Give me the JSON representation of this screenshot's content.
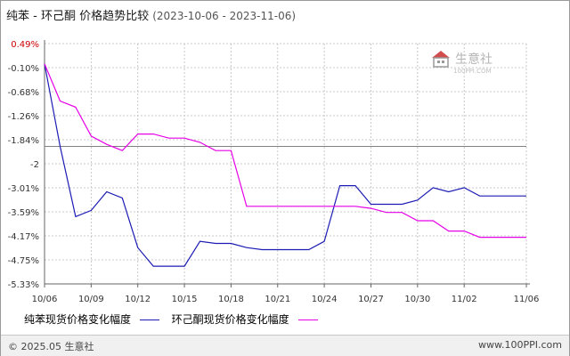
{
  "title": {
    "main": "纯苯 - 环己酮 价格趋势比较",
    "range": "(2023-10-06 - 2023-11-06)"
  },
  "watermark": {
    "brand": "生意社",
    "url": "100PPI.COM"
  },
  "footer": {
    "copyright": "© 2025.05 生意社",
    "site": "www.100PPI.com"
  },
  "colors": {
    "series1": "#1c1cb4",
    "series2": "#e600e6",
    "grid": "#c8c8c8",
    "axis": "#666666",
    "positive_tick": "#cc0000",
    "baseline": "#808080",
    "watermark_red": "#d24d4d",
    "watermark_gray": "#9a9a9a"
  },
  "chart_data": {
    "type": "line",
    "title": "纯苯 - 环己酮 价格趋势比较",
    "x_ticks": [
      "10/06",
      "10/09",
      "10/12",
      "10/15",
      "10/18",
      "10/21",
      "10/24",
      "10/27",
      "10/30",
      "11/02",
      "11/06"
    ],
    "y_ticks": [
      "0.49%",
      "-0.10%",
      "-0.68%",
      "-1.26%",
      "-1.84%",
      "-2",
      "-3.01%",
      "-3.59%",
      "-4.17%",
      "-4.75%",
      "-5.33%"
    ],
    "ylim": [
      -5.33,
      0.49
    ],
    "baseline_y": -2.0,
    "grid": true,
    "legend_position": "bottom-left",
    "x": [
      "10/06",
      "10/07",
      "10/08",
      "10/09",
      "10/10",
      "10/11",
      "10/12",
      "10/13",
      "10/14",
      "10/15",
      "10/16",
      "10/17",
      "10/18",
      "10/19",
      "10/20",
      "10/21",
      "10/22",
      "10/23",
      "10/24",
      "10/25",
      "10/26",
      "10/27",
      "10/28",
      "10/29",
      "10/30",
      "10/31",
      "11/01",
      "11/02",
      "11/03",
      "11/04",
      "11/05",
      "11/06"
    ],
    "series": [
      {
        "name": "纯苯现货价格变化幅度",
        "values": [
          0.0,
          -2.0,
          -3.7,
          -3.55,
          -3.1,
          -3.25,
          -4.45,
          -4.9,
          -4.9,
          -4.9,
          -4.3,
          -4.35,
          -4.35,
          -4.45,
          -4.5,
          -4.5,
          -4.5,
          -4.5,
          -4.3,
          -2.95,
          -2.95,
          -3.4,
          -3.4,
          -3.4,
          -3.3,
          -3.0,
          -3.1,
          -3.0,
          -3.2,
          -3.2,
          -3.2,
          -3.2
        ]
      },
      {
        "name": "环己酮现货价格变化幅度",
        "values": [
          0.0,
          -0.9,
          -1.05,
          -1.75,
          -1.95,
          -2.1,
          -1.7,
          -1.7,
          -1.8,
          -1.8,
          -1.9,
          -2.1,
          -2.1,
          -3.45,
          -3.45,
          -3.45,
          -3.45,
          -3.45,
          -3.45,
          -3.45,
          -3.45,
          -3.5,
          -3.6,
          -3.6,
          -3.8,
          -3.8,
          -4.05,
          -4.05,
          -4.2,
          -4.2,
          -4.2,
          -4.2
        ]
      }
    ]
  }
}
